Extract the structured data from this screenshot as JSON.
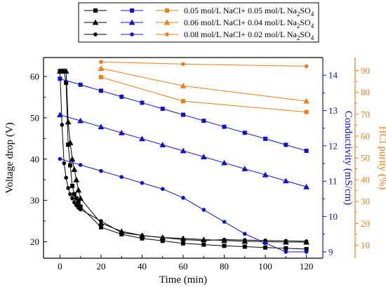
{
  "chart_data": {
    "type": "line",
    "x_axis": {
      "label": "Time (min)",
      "range": [
        -8,
        128
      ],
      "ticks": [
        0,
        20,
        40,
        60,
        80,
        100,
        120
      ]
    },
    "y_left": {
      "label": "Voltage drop (V)",
      "range": [
        16,
        64.6
      ],
      "ticks": [
        20,
        30,
        40,
        50,
        60
      ],
      "color": "#000000"
    },
    "y_cond": {
      "label": "Conductivity (mS/cm)",
      "range": [
        8.82,
        14.5
      ],
      "ticks": [
        9,
        10,
        11,
        12,
        13,
        14
      ],
      "color": "#1010d0"
    },
    "y_purity": {
      "label": "HCl purity (%)",
      "range": [
        4,
        96
      ],
      "ticks": [
        10,
        20,
        30,
        40,
        50,
        60,
        70,
        80,
        90
      ],
      "color": "#ef7d1a"
    },
    "legend": {
      "placement": "top",
      "rows": [
        {
          "name": "0.05 mol/L NaCl+ 0.05 mol/L Na",
          "sub": "2",
          "tail": "SO",
          "sub2": "4",
          "marker": "square"
        },
        {
          "name": "0.06 mol/L NaCl+ 0.04 mol/L Na",
          "sub": "2",
          "tail": "SO",
          "sub2": "4",
          "marker": "triangle"
        },
        {
          "name": "0.08 mol/L NaCl+ 0.02 mol/L Na",
          "sub": "2",
          "tail": "SO",
          "sub2": "4",
          "marker": "circle"
        }
      ]
    },
    "series": [
      {
        "axis": "y_left",
        "color": "#000000",
        "marker": "square",
        "msize": 3,
        "x": [
          0,
          1,
          2,
          3,
          4,
          5,
          6,
          7,
          8,
          9,
          10,
          20,
          30,
          40,
          50,
          60,
          70,
          80,
          90,
          100,
          110,
          120
        ],
        "y": [
          61.3,
          61.3,
          61.3,
          58.5,
          43.5,
          38.5,
          33.5,
          31.5,
          30.5,
          29.5,
          28.5,
          23.5,
          21.8,
          20.8,
          20.2,
          19.6,
          19.3,
          19.0,
          18.8,
          18.6,
          18.4,
          18.2
        ]
      },
      {
        "axis": "y_left",
        "color": "#000000",
        "marker": "triangle",
        "msize": 3.5,
        "x": [
          0,
          1,
          2,
          3,
          4,
          5,
          6,
          7,
          8,
          9,
          10,
          20,
          30,
          40,
          50,
          60,
          70,
          80,
          90,
          100,
          110,
          120
        ],
        "y": [
          61.3,
          61.3,
          61.3,
          61.3,
          49.0,
          44.0,
          40.0,
          37.5,
          35.0,
          32.5,
          30.5,
          24.5,
          22.5,
          21.5,
          21.0,
          20.8,
          20.5,
          20.3,
          20.1,
          20.0,
          19.9,
          19.9
        ]
      },
      {
        "axis": "y_left",
        "color": "#000000",
        "marker": "circle",
        "msize": 2.8,
        "x": [
          0,
          1,
          2,
          3,
          4,
          5,
          6,
          7,
          8,
          9,
          10,
          20,
          30,
          40,
          50,
          60,
          70,
          80,
          90,
          100,
          110,
          120
        ],
        "y": [
          61.3,
          48.3,
          39.0,
          35.5,
          33.0,
          31.5,
          30.5,
          29.5,
          28.8,
          28.2,
          27.8,
          25.0,
          22.2,
          21.5,
          21.0,
          20.5,
          20.3,
          20.5,
          20.4,
          20.3,
          20.2,
          20.1
        ]
      },
      {
        "axis": "y_cond",
        "color": "#1010d0",
        "marker": "square",
        "msize": 3,
        "x": [
          0,
          10,
          20,
          30,
          40,
          50,
          60,
          70,
          80,
          90,
          100,
          110,
          120
        ],
        "y": [
          13.9,
          13.73,
          13.56,
          13.39,
          13.22,
          13.05,
          12.88,
          12.71,
          12.54,
          12.37,
          12.2,
          12.03,
          11.86
        ]
      },
      {
        "axis": "y_cond",
        "color": "#1010d0",
        "marker": "triangle",
        "msize": 3.5,
        "x": [
          0,
          10,
          20,
          30,
          40,
          50,
          60,
          70,
          80,
          90,
          100,
          110,
          120
        ],
        "y": [
          12.88,
          12.71,
          12.54,
          12.37,
          12.2,
          12.03,
          11.86,
          11.69,
          11.52,
          11.35,
          11.18,
          11.01,
          10.84
        ]
      },
      {
        "axis": "y_cond",
        "color": "#1010d0",
        "marker": "circle",
        "msize": 2.8,
        "x": [
          0,
          10,
          20,
          30,
          40,
          50,
          60,
          70,
          80,
          90,
          100,
          110,
          120
        ],
        "y": [
          11.63,
          11.46,
          11.29,
          11.12,
          10.95,
          10.78,
          10.53,
          10.19,
          9.85,
          9.51,
          9.25,
          9.0,
          9.0
        ]
      },
      {
        "axis": "y_purity",
        "color": "#ef7d1a",
        "marker": "square",
        "msize": 3,
        "x": [
          20,
          60,
          120
        ],
        "y": [
          87,
          76,
          71
        ]
      },
      {
        "axis": "y_purity",
        "color": "#ef7d1a",
        "marker": "triangle",
        "msize": 3.5,
        "x": [
          20,
          60,
          120
        ],
        "y": [
          91,
          83,
          76
        ]
      },
      {
        "axis": "y_purity",
        "color": "#ef7d1a",
        "marker": "circle",
        "msize": 2.8,
        "x": [
          20,
          60,
          120
        ],
        "y": [
          94,
          93,
          92
        ]
      }
    ]
  }
}
